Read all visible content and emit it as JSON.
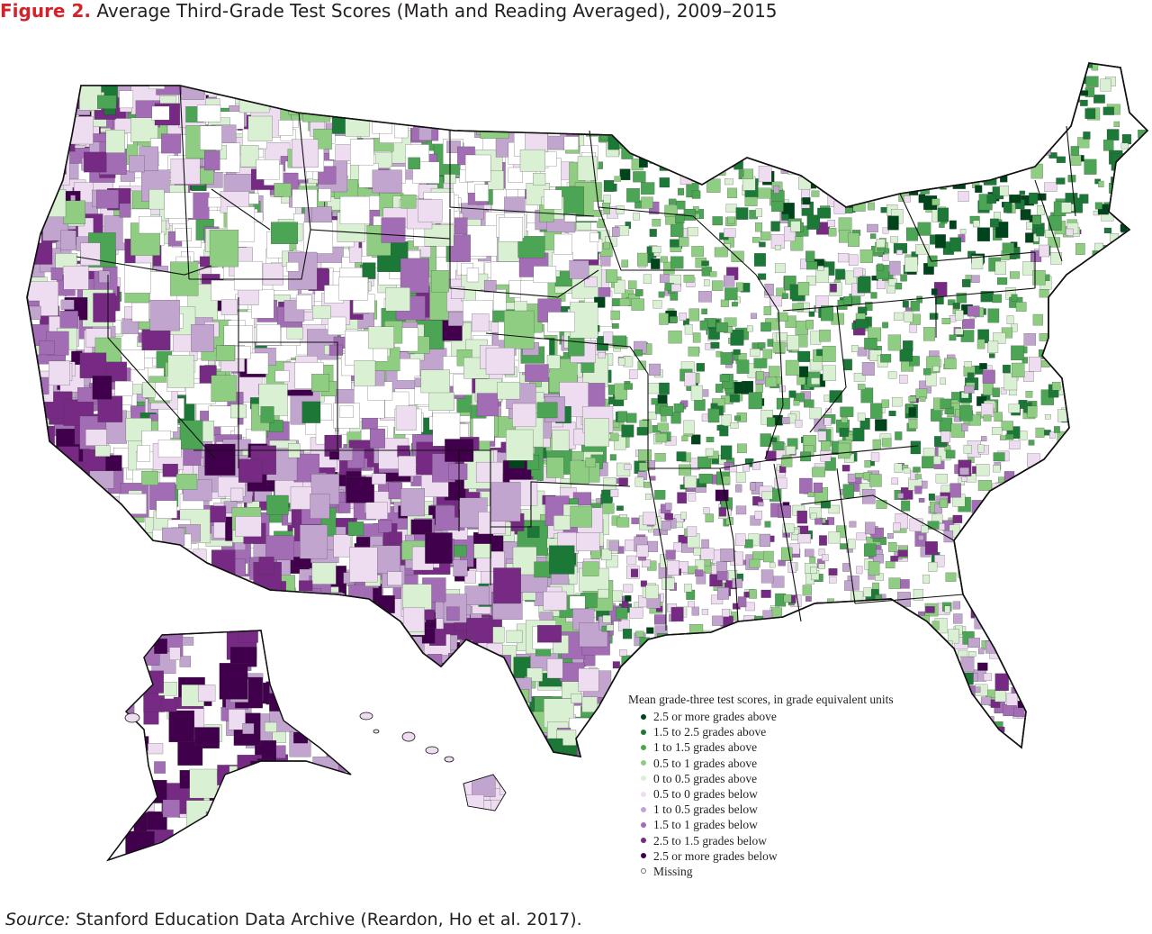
{
  "figure": {
    "label": "Figure 2.",
    "title": "Average Third-Grade Test Scores (Math and Reading Averaged), 2009–2015"
  },
  "legend": {
    "title": "Mean grade-three test scores, in grade equivalent units",
    "items": [
      {
        "label": "2.5 or more grades above",
        "color": "#00441b"
      },
      {
        "label": "1.5 to 2.5 grades above",
        "color": "#1b7837"
      },
      {
        "label": "1 to 1.5 grades above",
        "color": "#4ba554"
      },
      {
        "label": "0.5 to 1 grades above",
        "color": "#8fce82"
      },
      {
        "label": "0 to 0.5 grades above",
        "color": "#d9f0d3"
      },
      {
        "label": "0.5 to 0 grades below",
        "color": "#eedcf0"
      },
      {
        "label": "1 to 0.5 grades below",
        "color": "#c2a5cf"
      },
      {
        "label": "1.5 to 1 grades below",
        "color": "#a26db4"
      },
      {
        "label": "2.5 to 1.5 grades below",
        "color": "#762a83"
      },
      {
        "label": "2.5 or more grades below",
        "color": "#40004b"
      },
      {
        "label": "Missing",
        "color": "#ffffff"
      }
    ]
  },
  "source": {
    "label": "Source:",
    "text": "Stanford Education Data Archive (Reardon, Ho et al. 2017)."
  }
}
